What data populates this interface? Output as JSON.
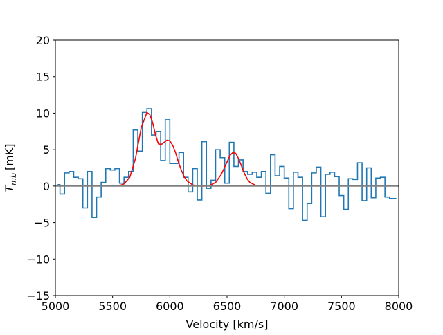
{
  "chart_data": {
    "type": "line",
    "xlabel": "Velocity [km/s]",
    "ylabel": "[mK]",
    "ylabel_symbol": "T",
    "ylabel_subscript": "mb",
    "xlim": [
      5000,
      8000
    ],
    "ylim": [
      -15,
      20
    ],
    "x_ticks": [
      5000,
      5500,
      6000,
      6500,
      7000,
      7500,
      8000
    ],
    "x_tick_labels": [
      "5000",
      "5500",
      "6000",
      "6500",
      "7000",
      "7500",
      "8000"
    ],
    "y_ticks": [
      -15,
      -10,
      -5,
      0,
      5,
      10,
      15,
      20
    ],
    "y_tick_labels": [
      "−15",
      "−10",
      "−5",
      "0",
      "5",
      "10",
      "15",
      "20"
    ],
    "grid": false,
    "legend": "none",
    "colors": {
      "spectrum": "#1f77b4",
      "fit": "#ff0000",
      "baseline": "#808080"
    },
    "series": [
      {
        "style": "steps-mid",
        "color": "#1f77b4",
        "x": [
          5020,
          5060,
          5100,
          5140,
          5180,
          5220,
          5260,
          5300,
          5340,
          5380,
          5420,
          5460,
          5500,
          5540,
          5580,
          5620,
          5660,
          5700,
          5740,
          5780,
          5820,
          5860,
          5900,
          5940,
          5980,
          6020,
          6060,
          6100,
          6140,
          6180,
          6220,
          6260,
          6300,
          6340,
          6380,
          6420,
          6460,
          6500,
          6540,
          6580,
          6620,
          6660,
          6700,
          6740,
          6780,
          6820,
          6860,
          6900,
          6940,
          6980,
          7020,
          7060,
          7100,
          7140,
          7180,
          7220,
          7260,
          7300,
          7340,
          7380,
          7420,
          7460,
          7500,
          7540,
          7580,
          7620,
          7660,
          7700,
          7740,
          7780,
          7820,
          7860,
          7900,
          7940,
          7980
        ],
        "y": [
          0.2,
          -1.1,
          1.8,
          2.0,
          1.2,
          1.0,
          -3.0,
          2.0,
          -4.3,
          -1.5,
          0.5,
          2.4,
          2.2,
          2.4,
          0.4,
          1.2,
          2.0,
          7.7,
          4.8,
          10.1,
          10.6,
          7.0,
          7.5,
          3.5,
          9.1,
          3.1,
          3.1,
          4.6,
          1.2,
          -0.8,
          2.4,
          -1.9,
          6.1,
          -0.3,
          0.8,
          5.0,
          3.9,
          0.4,
          6.0,
          2.7,
          3.6,
          2.0,
          1.6,
          1.9,
          1.2,
          2.0,
          -1.0,
          4.3,
          1.4,
          2.7,
          1.1,
          -3.1,
          1.9,
          1.2,
          -4.7,
          -2.4,
          1.8,
          2.6,
          -4.2,
          1.6,
          1.9,
          1.3,
          -1.3,
          -3.2,
          1.0,
          0.9,
          3.2,
          -2.0,
          2.5,
          -1.6,
          1.1,
          1.2,
          -1.5,
          -1.7,
          -1.7
        ]
      },
      {
        "style": "line",
        "color": "#ff0000",
        "x": [
          5550,
          5600,
          5650,
          5700,
          5750,
          5800,
          5825,
          5850,
          5875,
          5900,
          5925,
          5950,
          5975,
          6000,
          6025,
          6050,
          6075,
          6100,
          6125,
          6150,
          6200,
          6250,
          6300,
          6350,
          6400,
          6450,
          6500,
          6525,
          6550,
          6575,
          6600,
          6625,
          6650,
          6675,
          6700,
          6750,
          6800
        ],
        "y": [
          0.0,
          0.3,
          1.2,
          3.8,
          8.0,
          10.1,
          9.8,
          8.7,
          7.0,
          5.8,
          5.7,
          6.0,
          6.3,
          6.2,
          5.6,
          4.6,
          3.3,
          2.2,
          1.3,
          0.7,
          0.15,
          0.0,
          0.0,
          0.1,
          0.5,
          1.6,
          3.3,
          4.2,
          4.6,
          4.5,
          3.8,
          2.8,
          1.8,
          1.0,
          0.5,
          0.1,
          0.0
        ]
      },
      {
        "style": "line",
        "color": "#808080",
        "x": [
          5000,
          8000
        ],
        "y": [
          0,
          0
        ]
      }
    ]
  }
}
